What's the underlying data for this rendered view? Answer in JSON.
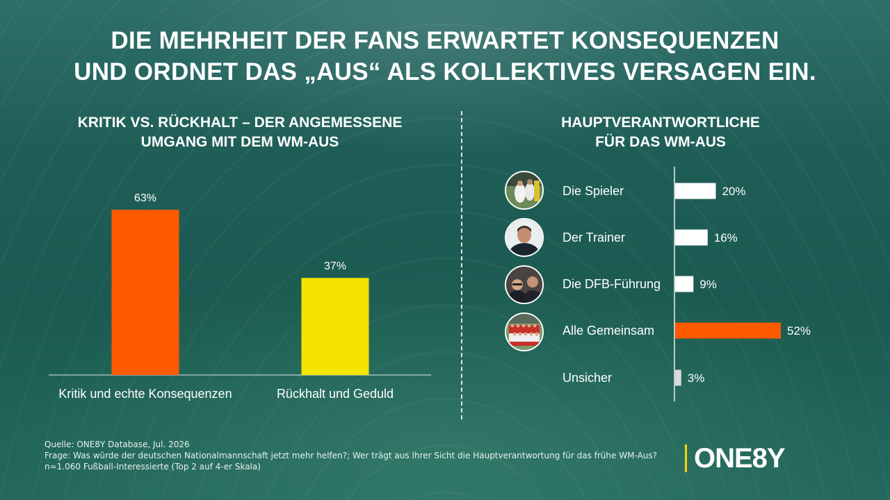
{
  "title": {
    "line1": "DIE MEHRHEIT DER FANS ERWARTET KONSEQUENZEN",
    "line2": "UND ORDNET DAS „AUS“ ALS KOLLEKTIVES VERSAGEN EIN."
  },
  "chart_data": [
    {
      "type": "bar",
      "title": "KRITIK VS. RÜCKHALT – DER ANGEMESSENE UMGANG MIT DEM WM-AUS",
      "title_lines": [
        "KRITIK VS. RÜCKHALT – DER ANGEMESSENE",
        "UMGANG MIT DEM WM-AUS"
      ],
      "categories": [
        "Kritik und echte Konsequenzen",
        "Rückhalt und Geduld"
      ],
      "values": [
        63,
        37
      ],
      "value_labels": [
        "63%",
        "37%"
      ],
      "colors": [
        "#ff5a00",
        "#f5e300"
      ],
      "ylim": [
        0,
        100
      ],
      "grid": false
    },
    {
      "type": "bar",
      "orientation": "horizontal",
      "title": "HAUPTVERANTWORTLICHE FÜR DAS WM-AUS",
      "title_lines": [
        "HAUPTVERANTWORTLICHE",
        "FÜR DAS WM-AUS"
      ],
      "categories": [
        "Die Spieler",
        "Der Trainer",
        "Die DFB-Führung",
        "Alle Gemeinsam",
        "Unsicher"
      ],
      "values": [
        20,
        16,
        9,
        52,
        3
      ],
      "value_labels": [
        "20%",
        "16%",
        "9%",
        "52%",
        "3%"
      ],
      "colors": [
        "#ffffff",
        "#ffffff",
        "#ffffff",
        "#ff5a00",
        "#d9d9d9"
      ],
      "icons": [
        "players-photo",
        "coach-photo",
        "officials-photo",
        "team-photo",
        null
      ],
      "xlim": [
        0,
        100
      ],
      "grid": false
    }
  ],
  "footer": {
    "source": "Quelle: ONE8Y Database, Jul. 2026",
    "question": "Frage: Was würde der deutschen Nationalmannschaft jetzt mehr helfen?; Wer trägt aus Ihrer Sicht die Hauptverantwortung für das frühe WM-Aus?",
    "sample": "n=1.060 Fußball-Interessierte (Top 2 auf 4-er Skala)"
  },
  "logo": {
    "text": "ONE8Y",
    "accent": "#ffd400"
  }
}
